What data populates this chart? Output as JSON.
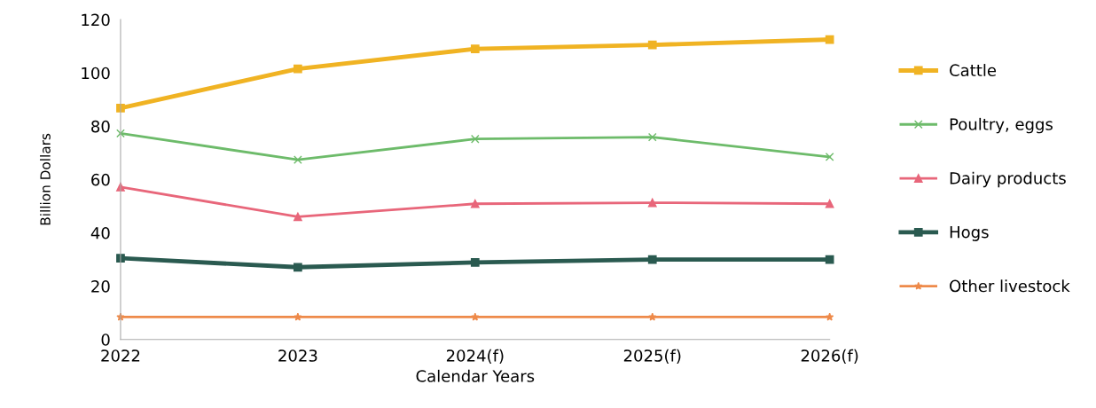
{
  "chart_data": {
    "type": "line",
    "xlabel": "Calendar Years",
    "ylabel": "Billion Dollars",
    "categories": [
      "2022",
      "2023",
      "2024(f)",
      "2025(f)",
      "2026(f)"
    ],
    "series": [
      {
        "name": "Cattle",
        "color": "#f0b323",
        "marker": "square",
        "values": [
          86.8,
          101.5,
          109,
          110.5,
          112.5
        ]
      },
      {
        "name": "Poultry, eggs",
        "color": "#6dbb6a",
        "marker": "cross",
        "values": [
          77.3,
          67.4,
          75.2,
          75.9,
          68.5
        ]
      },
      {
        "name": "Dairy products",
        "color": "#e8667a",
        "marker": "triangle",
        "values": [
          57.2,
          46.0,
          50.9,
          51.3,
          50.9
        ]
      },
      {
        "name": "Hogs",
        "color": "#2a5a50",
        "marker": "square",
        "values": [
          30.5,
          27.1,
          28.9,
          30.0,
          30.0
        ]
      },
      {
        "name": "Other livestock",
        "color": "#ee8a4a",
        "marker": "star",
        "values": [
          8.4,
          8.4,
          8.4,
          8.4,
          8.4
        ]
      }
    ],
    "ylim": [
      0,
      120
    ],
    "yticks": [
      0,
      20,
      40,
      60,
      80,
      100,
      120
    ],
    "grid": false,
    "legend": "right",
    "line_style": "solid"
  }
}
